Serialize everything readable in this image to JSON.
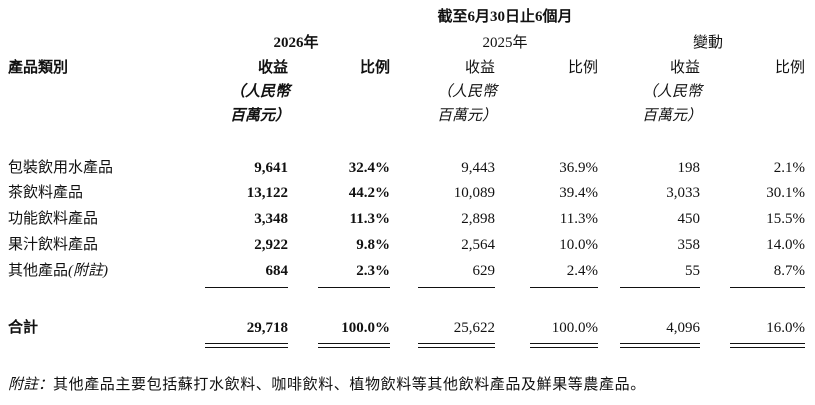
{
  "header": {
    "period": "截至6月30日止6個月",
    "groups": [
      "2026年",
      "2025年",
      "變動"
    ],
    "category_label": "產品類別",
    "columns": [
      "收益",
      "比例",
      "收益",
      "比例",
      "收益",
      "比例"
    ],
    "unit_lines": [
      "（人民幣",
      "百萬元）"
    ]
  },
  "rows": [
    {
      "name": "包裝飲用水產品",
      "cells": [
        "9,641",
        "32.4%",
        "9,443",
        "36.9%",
        "198",
        "2.1%"
      ]
    },
    {
      "name": "茶飲料產品",
      "cells": [
        "13,122",
        "44.2%",
        "10,089",
        "39.4%",
        "3,033",
        "30.1%"
      ]
    },
    {
      "name": "功能飲料產品",
      "cells": [
        "3,348",
        "11.3%",
        "2,898",
        "11.3%",
        "450",
        "15.5%"
      ]
    },
    {
      "name": "果汁飲料產品",
      "cells": [
        "2,922",
        "9.8%",
        "2,564",
        "10.0%",
        "358",
        "14.0%"
      ]
    },
    {
      "name": "其他產品",
      "name_note": "(附註)",
      "cells": [
        "684",
        "2.3%",
        "629",
        "2.4%",
        "55",
        "8.7%"
      ]
    }
  ],
  "total": {
    "name": "合計",
    "cells": [
      "29,718",
      "100.0%",
      "25,622",
      "100.0%",
      "4,096",
      "16.0%"
    ]
  },
  "footnote": {
    "label": "附註：",
    "text": "其他產品主要包括蘇打水飲料、咖啡飲料、植物飲料等其他飲料產品及鮮果等農產品。"
  }
}
